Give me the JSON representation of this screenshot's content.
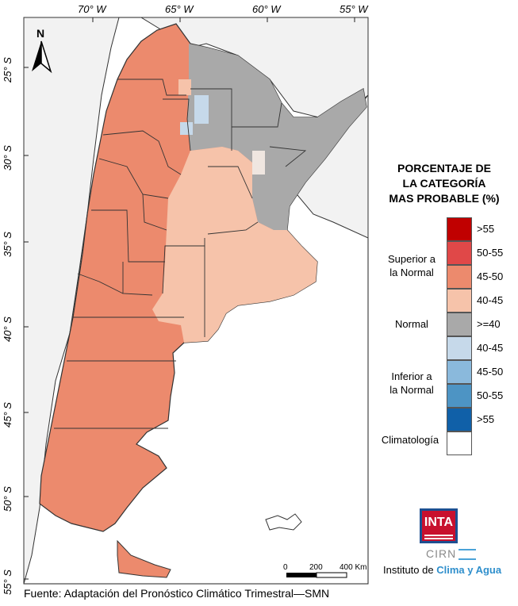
{
  "map": {
    "north_label": "N",
    "lon_labels": [
      "70° W",
      "65° W",
      "60° W",
      "55° W"
    ],
    "lat_labels": [
      "25° S",
      "30° S",
      "35° S",
      "40° S",
      "45° S",
      "50° S",
      "55° S"
    ],
    "scale": {
      "zero": "0",
      "mid": "200",
      "end": "400 Km"
    },
    "colors": {
      "background": "#ffffff",
      "neighbors": "#f2f2f2",
      "sup_45_50": "#ec8a6d",
      "sup_40_45": "#f6c3aa",
      "normal": "#a9a9a9",
      "inf_40_45": "#c6d9ea",
      "border": "#333333"
    }
  },
  "legend": {
    "title_lines": [
      "PORCENTAJE DE",
      "LA CATEGORÍA",
      "MAS PROBABLE (%)"
    ],
    "groups": [
      {
        "label_lines": [
          "Superior a",
          "la Normal"
        ]
      },
      {
        "label_lines": [
          "Normal"
        ]
      },
      {
        "label_lines": [
          "Inferior a",
          "la Normal"
        ]
      },
      {
        "label_lines": [
          "Climatología"
        ]
      }
    ],
    "swatches": [
      {
        "label": ">55",
        "color": "#c00000"
      },
      {
        "label": "50-55",
        "color": "#e04848"
      },
      {
        "label": "45-50",
        "color": "#ec8a6d"
      },
      {
        "label": "40-45",
        "color": "#f6c3aa"
      },
      {
        "label": ">=40",
        "color": "#a9a9a9"
      },
      {
        "label": "40-45",
        "color": "#c6d9ea"
      },
      {
        "label": "45-50",
        "color": "#8ab9dc"
      },
      {
        "label": "50-55",
        "color": "#4d94c4"
      },
      {
        "label": ">55",
        "color": "#1060a8"
      },
      {
        "label": "",
        "color": "#ffffff"
      }
    ]
  },
  "logos": {
    "inta": "INTA",
    "cirn": "CIRN",
    "instituto_prefix": "Instituto de ",
    "instituto_highlight": "Clima y Agua"
  },
  "footer": {
    "source": "Fuente: Adaptación del Pronóstico Climático Trimestral—SMN"
  }
}
